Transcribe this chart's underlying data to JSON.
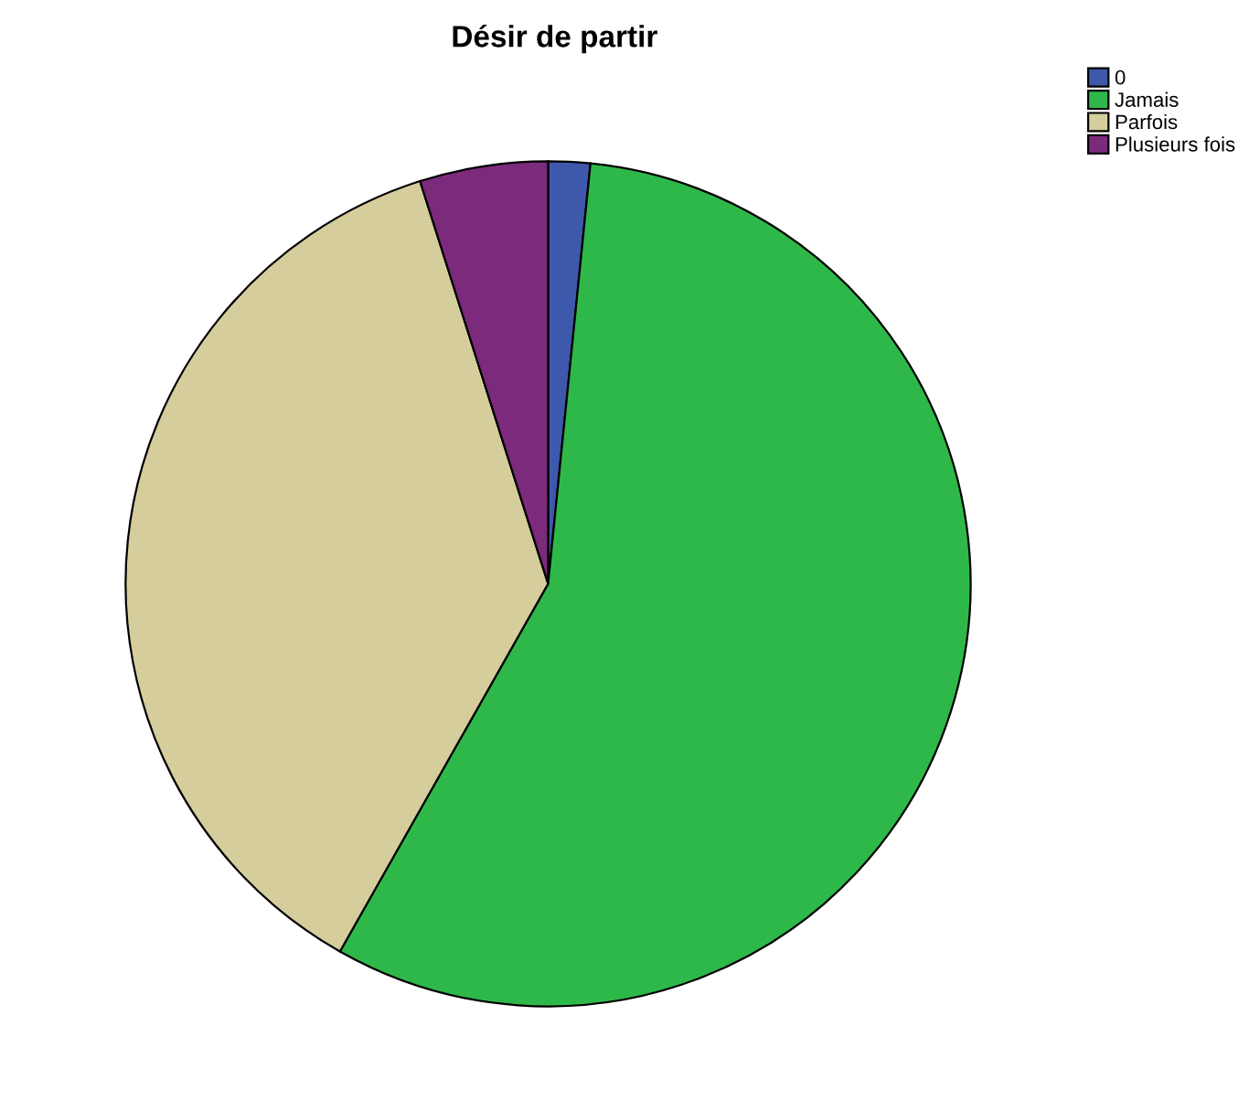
{
  "chart_data": {
    "type": "pie",
    "title": "Désir de partir",
    "categories": [
      "0",
      "Jamais",
      "Parfois",
      "Plusieurs fois"
    ],
    "values": [
      1.6,
      56.6,
      36.9,
      4.9
    ],
    "colors": [
      "#3e58ac",
      "#2fb84a",
      "#d5cd9b",
      "#7b2a7c"
    ],
    "legend": "top right"
  }
}
